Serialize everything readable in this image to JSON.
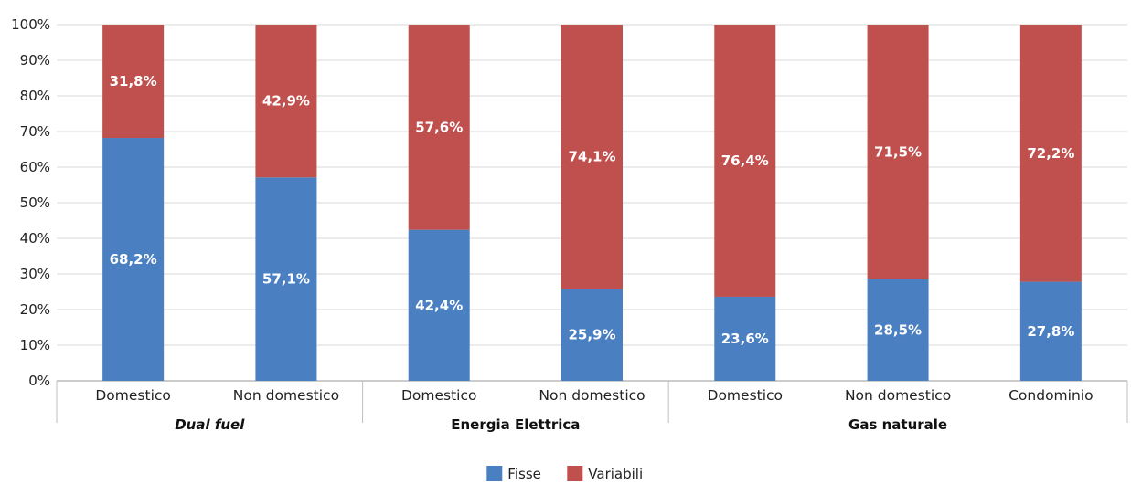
{
  "chart_data": {
    "type": "bar",
    "stacked": "percent",
    "categories": [
      "Domestico",
      "Non domestico",
      "Domestico",
      "Non domestico",
      "Domestico",
      "Non domestico",
      "Condominio"
    ],
    "groups": [
      {
        "label": "Dual fuel",
        "italic": true,
        "count": 2
      },
      {
        "label": "Energia Elettrica",
        "italic": false,
        "count": 2
      },
      {
        "label": "Gas naturale",
        "italic": false,
        "count": 3
      }
    ],
    "series": [
      {
        "name": "Fisse",
        "color": "#4a7fc1",
        "values": [
          68.2,
          57.1,
          42.4,
          25.9,
          23.6,
          28.5,
          27.8
        ],
        "labels": [
          "68,2%",
          "57,1%",
          "42,4%",
          "25,9%",
          "23,6%",
          "28,5%",
          "27,8%"
        ]
      },
      {
        "name": "Variabili",
        "color": "#c0504d",
        "values": [
          31.8,
          42.9,
          57.6,
          74.1,
          76.4,
          71.5,
          72.2
        ],
        "labels": [
          "31,8%",
          "42,9%",
          "57,6%",
          "74,1%",
          "76,4%",
          "71,5%",
          "72,2%"
        ]
      }
    ],
    "ylim": [
      0,
      100
    ],
    "yticks": [
      "0%",
      "10%",
      "20%",
      "30%",
      "40%",
      "50%",
      "60%",
      "70%",
      "80%",
      "90%",
      "100%"
    ],
    "grid": true,
    "legend": "bottom-center"
  }
}
